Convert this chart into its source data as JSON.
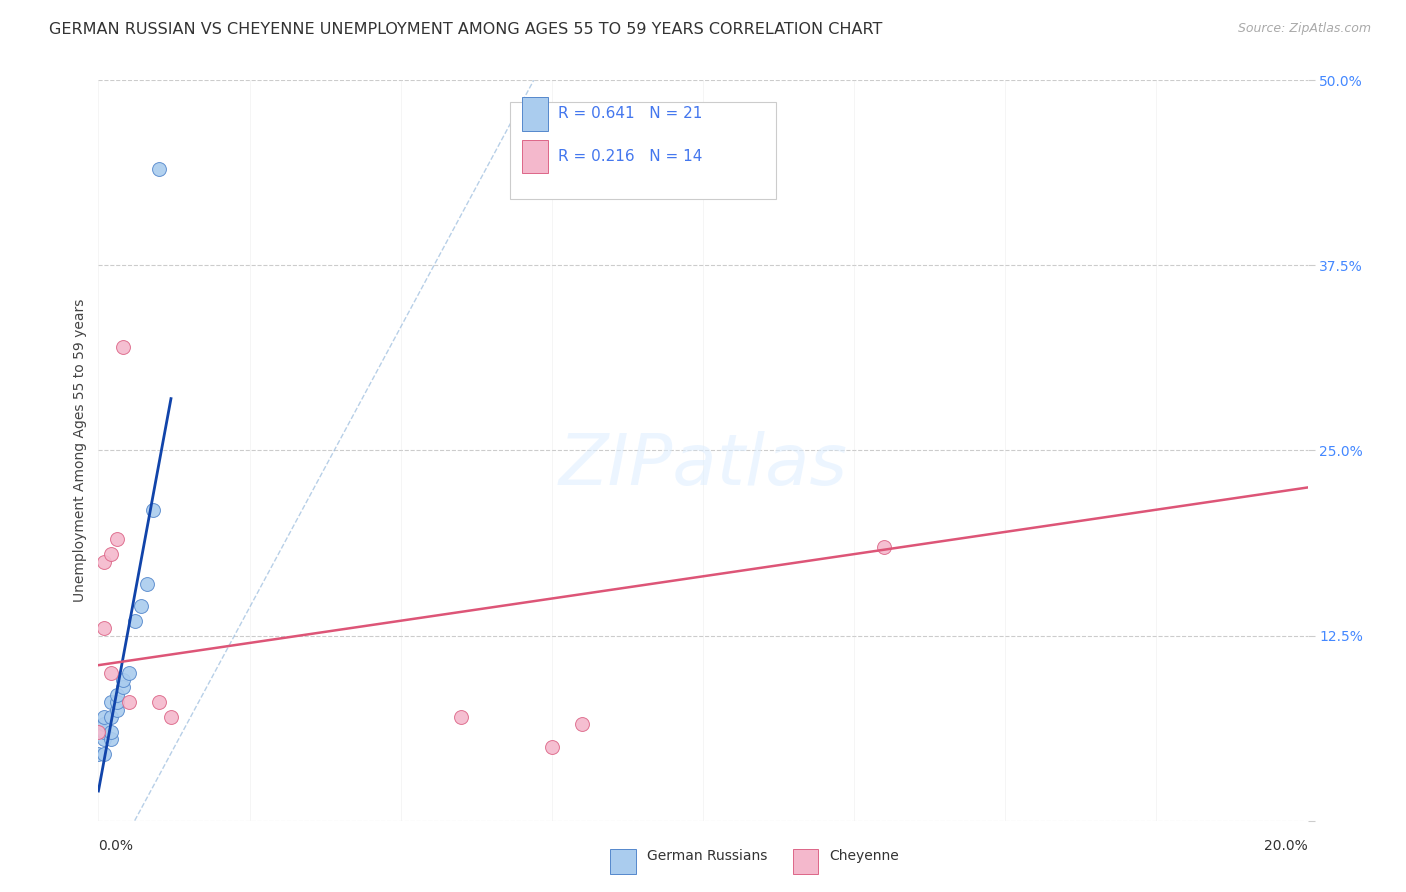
{
  "title": "GERMAN RUSSIAN VS CHEYENNE UNEMPLOYMENT AMONG AGES 55 TO 59 YEARS CORRELATION CHART",
  "source": "Source: ZipAtlas.com",
  "ylabel": "Unemployment Among Ages 55 to 59 years",
  "yticks": [
    0.0,
    0.125,
    0.25,
    0.375,
    0.5
  ],
  "ytick_labels": [
    "",
    "12.5%",
    "25.0%",
    "37.5%",
    "50.0%"
  ],
  "xlim": [
    0.0,
    0.2
  ],
  "ylim": [
    0.0,
    0.5
  ],
  "german_russian_points": [
    [
      0.0,
      0.045
    ],
    [
      0.001,
      0.045
    ],
    [
      0.001,
      0.055
    ],
    [
      0.001,
      0.06
    ],
    [
      0.001,
      0.065
    ],
    [
      0.001,
      0.07
    ],
    [
      0.002,
      0.055
    ],
    [
      0.002,
      0.06
    ],
    [
      0.002,
      0.07
    ],
    [
      0.002,
      0.08
    ],
    [
      0.003,
      0.075
    ],
    [
      0.003,
      0.08
    ],
    [
      0.003,
      0.085
    ],
    [
      0.004,
      0.09
    ],
    [
      0.004,
      0.095
    ],
    [
      0.005,
      0.1
    ],
    [
      0.006,
      0.135
    ],
    [
      0.007,
      0.145
    ],
    [
      0.008,
      0.16
    ],
    [
      0.009,
      0.21
    ],
    [
      0.01,
      0.44
    ]
  ],
  "cheyenne_points": [
    [
      0.0,
      0.06
    ],
    [
      0.001,
      0.13
    ],
    [
      0.001,
      0.175
    ],
    [
      0.002,
      0.1
    ],
    [
      0.002,
      0.18
    ],
    [
      0.003,
      0.19
    ],
    [
      0.004,
      0.32
    ],
    [
      0.005,
      0.08
    ],
    [
      0.01,
      0.08
    ],
    [
      0.012,
      0.07
    ],
    [
      0.06,
      0.07
    ],
    [
      0.075,
      0.05
    ],
    [
      0.08,
      0.065
    ],
    [
      0.13,
      0.185
    ]
  ],
  "gr_color": "#aaccee",
  "gr_edge_color": "#5588cc",
  "ch_color": "#f4b8cc",
  "ch_edge_color": "#dd6688",
  "gr_line_color": "#1144aa",
  "ch_line_color": "#dd5577",
  "ref_line_color": "#99bbdd",
  "legend_r1": "R = 0.641   N = 21",
  "legend_r2": "R = 0.216   N = 14",
  "legend_label1": "German Russians",
  "legend_label2": "Cheyenne",
  "background_color": "#ffffff",
  "title_fontsize": 11.5,
  "axis_label_fontsize": 10,
  "tick_fontsize": 10,
  "source_fontsize": 9
}
